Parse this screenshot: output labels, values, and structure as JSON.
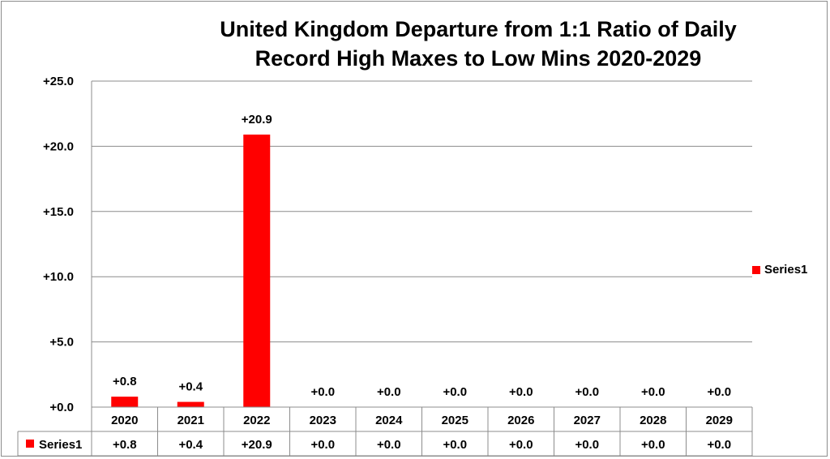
{
  "chart_data": {
    "type": "bar",
    "title_lines": [
      "United Kingdom Departure from 1:1 Ratio of Daily",
      "Record High Maxes to  Low Mins 2020-2029"
    ],
    "categories": [
      "2020",
      "2021",
      "2022",
      "2023",
      "2024",
      "2025",
      "2026",
      "2027",
      "2028",
      "2029"
    ],
    "series": [
      {
        "name": "Series1",
        "values": [
          0.8,
          0.4,
          20.9,
          0.0,
          0.0,
          0.0,
          0.0,
          0.0,
          0.0,
          0.0
        ],
        "labels": [
          "+0.8",
          "+0.4",
          "+20.9",
          "+0.0",
          "+0.0",
          "+0.0",
          "+0.0",
          "+0.0",
          "+0.0",
          "+0.0"
        ],
        "color": "#ff0000"
      }
    ],
    "ylim": [
      0,
      25
    ],
    "yticks": [
      0,
      5,
      10,
      15,
      20,
      25
    ],
    "ytick_labels": [
      "+0.0",
      "+5.0",
      "+10.0",
      "+15.0",
      "+20.0",
      "+25.0"
    ],
    "grid": true,
    "legend_position": "right",
    "data_table": true
  }
}
